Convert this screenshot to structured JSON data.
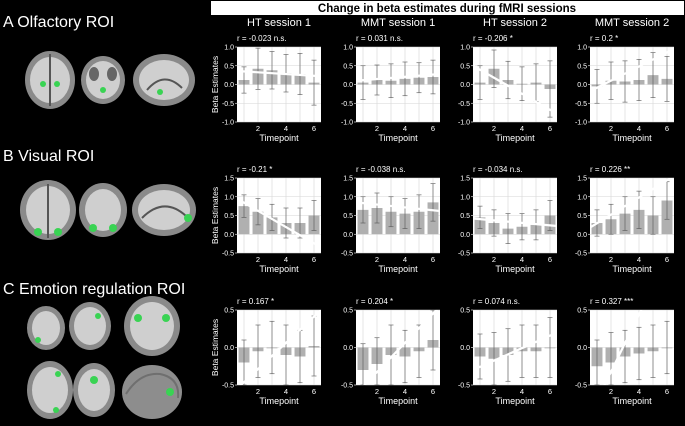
{
  "figure": {
    "title": "Change in beta estimates during fMRI sessions",
    "rows": [
      {
        "label": "A Olfactory ROI"
      },
      {
        "label": "B Visual ROI"
      },
      {
        "label": "C Emotion regulation ROI"
      }
    ],
    "columns": [
      "HT session 1",
      "MMT session 1",
      "HT session 2",
      "MMT session 2"
    ],
    "ylabel": "Beta Estimates",
    "xlabel": "Timepoint",
    "colors": {
      "background": "#000000",
      "panel": "#ffffff",
      "bar": "#b0b0b0",
      "regression_line": "#ffffff",
      "grid": "#d6d6d6",
      "roi_highlight": "#39d353"
    }
  },
  "chart_data": [
    {
      "type": "bar",
      "row": "A Olfactory ROI",
      "title": "HT session 1",
      "stat": "r = -0.023 n.s.",
      "categories": [
        1,
        2,
        3,
        4,
        5,
        6
      ],
      "values": [
        0.12,
        0.42,
        0.38,
        0.3,
        0.28,
        0.05
      ],
      "errors": [
        0.35,
        0.55,
        0.5,
        0.5,
        0.55,
        0.6
      ],
      "fit": {
        "y_at_x0_5": 0.36,
        "y_at_x6_5": 0.22
      },
      "xlabel": "Timepoint",
      "ylabel": "Beta Estimates",
      "ylim": [
        -1,
        1
      ],
      "yticks": [
        -1.0,
        -0.5,
        0.0,
        0.5,
        1.0
      ],
      "xticks": [
        2,
        4,
        6
      ],
      "grid": true
    },
    {
      "type": "bar",
      "row": "A Olfactory ROI",
      "title": "MMT session 1",
      "stat": "r = 0.031 n.s.",
      "categories": [
        1,
        2,
        3,
        4,
        5,
        6
      ],
      "values": [
        0.05,
        0.12,
        0.1,
        0.15,
        0.18,
        0.2
      ],
      "errors": [
        0.45,
        0.4,
        0.45,
        0.45,
        0.4,
        0.45
      ],
      "fit": {
        "y_at_x0_5": 0.1,
        "y_at_x6_5": 0.28
      },
      "xlabel": "Timepoint",
      "ylabel": "Beta Estimates",
      "ylim": [
        -1,
        1
      ],
      "yticks": [
        -1.0,
        -0.5,
        0.0,
        0.5,
        1.0
      ],
      "xticks": [
        2,
        4,
        6
      ],
      "grid": true
    },
    {
      "type": "bar",
      "row": "A Olfactory ROI",
      "title": "HT session 2",
      "stat": "r = -0.206 *",
      "categories": [
        1,
        2,
        3,
        4,
        5,
        6
      ],
      "values": [
        0.05,
        0.42,
        0.12,
        0.02,
        0.05,
        -0.12
      ],
      "errors": [
        0.45,
        0.5,
        0.5,
        0.45,
        0.5,
        0.75
      ],
      "fit": {
        "y_at_x0_5": 0.5,
        "y_at_x6_5": -0.78
      },
      "xlabel": "Timepoint",
      "ylabel": "Beta Estimates",
      "ylim": [
        -1,
        1
      ],
      "yticks": [
        -1.0,
        -0.5,
        0.0,
        0.5,
        1.0
      ],
      "xticks": [
        2,
        4,
        6
      ],
      "grid": true
    },
    {
      "type": "bar",
      "row": "A Olfactory ROI",
      "title": "MMT session 2",
      "stat": "r = 0.2 *",
      "categories": [
        1,
        2,
        3,
        4,
        5,
        6
      ],
      "values": [
        -0.05,
        0.1,
        0.08,
        0.12,
        0.25,
        0.15
      ],
      "errors": [
        0.45,
        0.5,
        0.55,
        0.55,
        0.6,
        0.6
      ],
      "fit": {
        "y_at_x0_5": -0.18,
        "y_at_x6_5": 0.95
      },
      "xlabel": "Timepoint",
      "ylabel": "Beta Estimates",
      "ylim": [
        -1,
        1
      ],
      "yticks": [
        -1.0,
        -0.5,
        0.0,
        0.5,
        1.0
      ],
      "xticks": [
        2,
        4,
        6
      ],
      "grid": true
    },
    {
      "type": "bar",
      "row": "B Visual ROI",
      "title": "HT session 1",
      "stat": "r = -0.21 *",
      "categories": [
        1,
        2,
        3,
        4,
        5,
        6
      ],
      "values": [
        0.75,
        0.6,
        0.45,
        0.3,
        0.3,
        0.5
      ],
      "errors": [
        0.3,
        0.35,
        0.35,
        0.4,
        0.4,
        0.4
      ],
      "fit": {
        "y_at_x0_5": 0.95,
        "y_at_x6_5": -0.35
      },
      "xlabel": "Timepoint",
      "ylabel": "Beta Estimates",
      "ylim": [
        -0.5,
        1.5
      ],
      "yticks": [
        -0.5,
        0.0,
        0.5,
        1.0,
        1.5
      ],
      "xticks": [
        2,
        4,
        6
      ],
      "grid": true
    },
    {
      "type": "bar",
      "row": "B Visual ROI",
      "title": "MMT session 1",
      "stat": "r = -0.038 n.s.",
      "categories": [
        1,
        2,
        3,
        4,
        5,
        6
      ],
      "values": [
        0.65,
        0.7,
        0.6,
        0.55,
        0.6,
        0.85
      ],
      "errors": [
        0.35,
        0.4,
        0.4,
        0.4,
        0.45,
        0.5
      ],
      "fit": {
        "y_at_x0_5": 0.85,
        "y_at_x6_5": 0.62
      },
      "xlabel": "Timepoint",
      "ylabel": "Beta Estimates",
      "ylim": [
        -0.5,
        1.5
      ],
      "yticks": [
        -0.5,
        0.0,
        0.5,
        1.0,
        1.5
      ],
      "xticks": [
        2,
        4,
        6
      ],
      "grid": true
    },
    {
      "type": "bar",
      "row": "B Visual ROI",
      "title": "HT session 2",
      "stat": "r = -0.034 n.s.",
      "categories": [
        1,
        2,
        3,
        4,
        5,
        6
      ],
      "values": [
        0.45,
        0.3,
        0.15,
        0.2,
        0.25,
        0.5
      ],
      "errors": [
        0.3,
        0.35,
        0.4,
        0.35,
        0.4,
        0.4
      ],
      "fit": {
        "y_at_x0_5": 0.42,
        "y_at_x6_5": 0.22
      },
      "xlabel": "Timepoint",
      "ylabel": "Beta Estimates",
      "ylim": [
        -0.5,
        1.5
      ],
      "yticks": [
        -0.5,
        0.0,
        0.5,
        1.0,
        1.5
      ],
      "xticks": [
        2,
        4,
        6
      ],
      "grid": true
    },
    {
      "type": "bar",
      "row": "B Visual ROI",
      "title": "MMT session 2",
      "stat": "r = 0.226 **",
      "categories": [
        1,
        2,
        3,
        4,
        5,
        6
      ],
      "values": [
        0.3,
        0.4,
        0.55,
        0.65,
        0.5,
        0.9
      ],
      "errors": [
        0.35,
        0.4,
        0.45,
        0.5,
        0.5,
        0.5
      ],
      "fit": {
        "y_at_x0_5": 0.18,
        "y_at_x6_5": 1.55
      },
      "xlabel": "Timepoint",
      "ylabel": "Beta Estimates",
      "ylim": [
        -0.5,
        1.5
      ],
      "yticks": [
        -0.5,
        0.0,
        0.5,
        1.0,
        1.5
      ],
      "xticks": [
        2,
        4,
        6
      ],
      "grid": true
    },
    {
      "type": "bar",
      "row": "C Emotion regulation ROI",
      "title": "HT session 1",
      "stat": "r = 0.167 *",
      "categories": [
        1,
        2,
        3,
        4,
        5,
        6
      ],
      "values": [
        -0.2,
        -0.05,
        0.0,
        -0.1,
        -0.12,
        0.02
      ],
      "errors": [
        0.3,
        0.35,
        0.35,
        0.4,
        0.35,
        0.4
      ],
      "fit": {
        "y_at_x0_5": -0.55,
        "y_at_x6_5": 0.5
      },
      "xlabel": "Timepoint",
      "ylabel": "Beta Estimates",
      "ylim": [
        -0.5,
        0.5
      ],
      "yticks": [
        -0.5,
        0.0,
        0.5
      ],
      "xticks": [
        2,
        4,
        6
      ],
      "grid": true
    },
    {
      "type": "bar",
      "row": "C Emotion regulation ROI",
      "title": "MMT session 1",
      "stat": "r = 0.204 *",
      "categories": [
        1,
        2,
        3,
        4,
        5,
        6
      ],
      "values": [
        -0.3,
        -0.22,
        -0.1,
        -0.12,
        -0.05,
        0.1
      ],
      "errors": [
        0.35,
        0.35,
        0.4,
        0.35,
        0.35,
        0.4
      ],
      "fit": {
        "y_at_x0_5": -0.62,
        "y_at_x6_5": 0.55
      },
      "xlabel": "Timepoint",
      "ylabel": "Beta Estimates",
      "ylim": [
        -0.5,
        0.5
      ],
      "yticks": [
        -0.5,
        0.0,
        0.5
      ],
      "xticks": [
        2,
        4,
        6
      ],
      "grid": true
    },
    {
      "type": "bar",
      "row": "C Emotion regulation ROI",
      "title": "HT session 2",
      "stat": "r = 0.074 n.s.",
      "categories": [
        1,
        2,
        3,
        4,
        5,
        6
      ],
      "values": [
        -0.12,
        -0.15,
        -0.1,
        -0.05,
        -0.05,
        0.0
      ],
      "errors": [
        0.3,
        0.35,
        0.35,
        0.35,
        0.35,
        0.4
      ],
      "fit": {
        "y_at_x0_5": -0.3,
        "y_at_x6_5": 0.2
      },
      "xlabel": "Timepoint",
      "ylabel": "Beta Estimates",
      "ylim": [
        -0.5,
        0.5
      ],
      "yticks": [
        -0.5,
        0.0,
        0.5
      ],
      "xticks": [
        2,
        4,
        6
      ],
      "grid": true
    },
    {
      "type": "bar",
      "row": "C Emotion regulation ROI",
      "title": "MMT session 2",
      "stat": "r = 0.327 ***",
      "categories": [
        1,
        2,
        3,
        4,
        5,
        6
      ],
      "values": [
        -0.25,
        -0.2,
        -0.12,
        -0.08,
        -0.05,
        0.0
      ],
      "errors": [
        0.35,
        0.4,
        0.35,
        0.35,
        0.35,
        0.35
      ],
      "fit": {
        "y_at_x0_5": -0.9,
        "y_at_x6_5": 1.4
      },
      "xlabel": "Timepoint",
      "ylabel": "Beta Estimates",
      "ylim": [
        -0.5,
        0.5
      ],
      "yticks": [
        -0.5,
        0.0,
        0.5
      ],
      "xticks": [
        2,
        4,
        6
      ],
      "grid": true
    }
  ]
}
